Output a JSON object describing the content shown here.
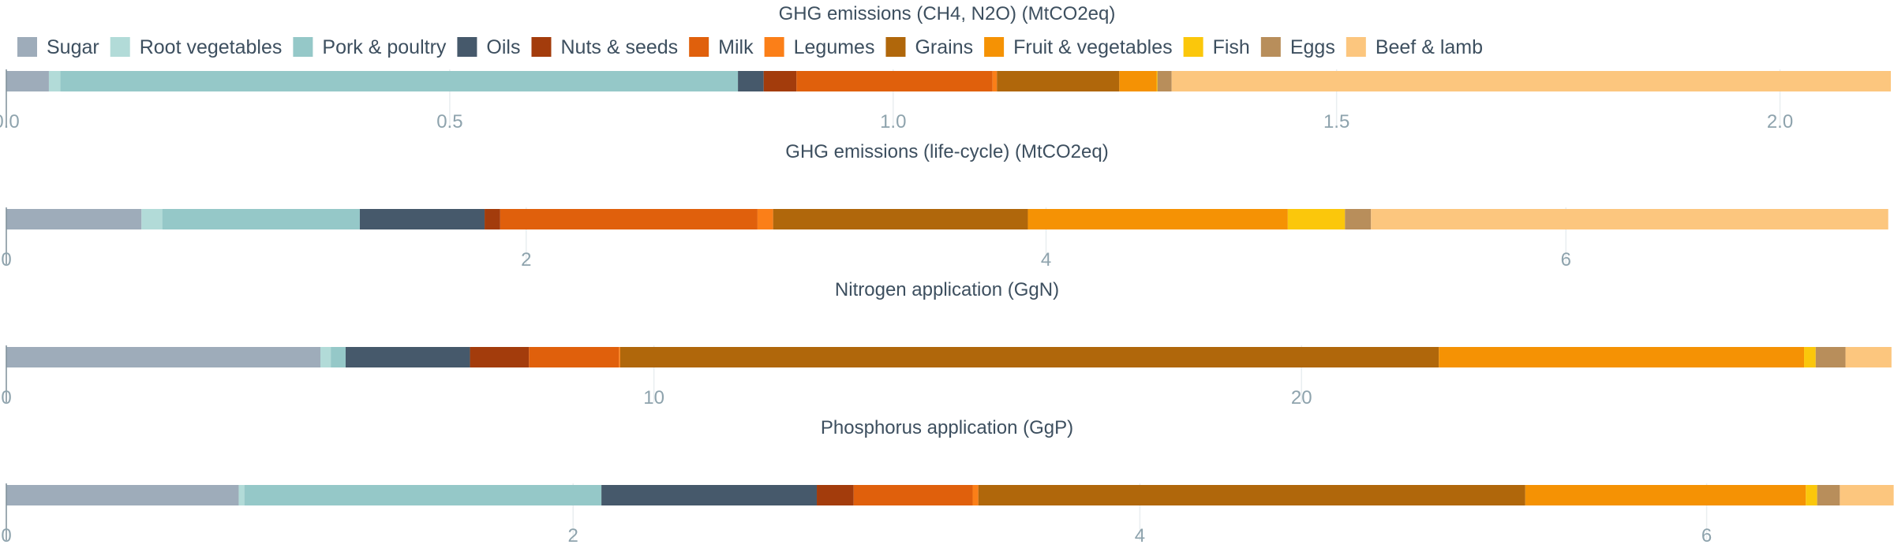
{
  "colors": {
    "Sugar": "#9eacba",
    "Root vegetables": "#b2dbd8",
    "Pork & poultry": "#95c8c8",
    "Oils": "#46596b",
    "Nuts & seeds": "#a33c0c",
    "Milk": "#e0600c",
    "Legumes": "#fb7f18",
    "Grains": "#b0670b",
    "Fruit & vegetables": "#f59204",
    "Fish": "#fbc70b",
    "Eggs": "#b88e5b",
    "Beef & lamb": "#fcc67e"
  },
  "legend": [
    "Sugar",
    "Root vegetables",
    "Pork & poultry",
    "Oils",
    "Nuts & seeds",
    "Milk",
    "Legumes",
    "Grains",
    "Fruit & vegetables",
    "Fish",
    "Eggs",
    "Beef & lamb"
  ],
  "chart_data": [
    {
      "type": "bar",
      "orientation": "horizontal-stacked",
      "title": "GHG emissions (CH4, N2O) (MtCO2eq)",
      "xlim": [
        0,
        2.125
      ],
      "ticks": [
        0,
        0.5,
        1.0,
        1.5,
        2.0
      ],
      "tick_labels": [
        "0.0",
        "0.5",
        "1.0",
        "1.5",
        "2.0"
      ],
      "series": [
        {
          "name": "Sugar",
          "value": 0.048
        },
        {
          "name": "Root vegetables",
          "value": 0.013
        },
        {
          "name": "Pork & poultry",
          "value": 0.764
        },
        {
          "name": "Oils",
          "value": 0.029
        },
        {
          "name": "Nuts & seeds",
          "value": 0.037
        },
        {
          "name": "Milk",
          "value": 0.221
        },
        {
          "name": "Legumes",
          "value": 0.005
        },
        {
          "name": "Grains",
          "value": 0.138
        },
        {
          "name": "Fruit & vegetables",
          "value": 0.042
        },
        {
          "name": "Fish",
          "value": 0.001
        },
        {
          "name": "Eggs",
          "value": 0.016
        },
        {
          "name": "Beef & lamb",
          "value": 0.811
        }
      ]
    },
    {
      "type": "bar",
      "orientation": "horizontal-stacked",
      "title": "GHG emissions (life-cycle) (MtCO2eq)",
      "xlim": [
        0,
        7.25
      ],
      "ticks": [
        0,
        2,
        4,
        6
      ],
      "tick_labels": [
        "0",
        "2",
        "4",
        "6"
      ],
      "series": [
        {
          "name": "Sugar",
          "value": 0.52
        },
        {
          "name": "Root vegetables",
          "value": 0.08
        },
        {
          "name": "Pork & poultry",
          "value": 0.76
        },
        {
          "name": "Oils",
          "value": 0.48
        },
        {
          "name": "Nuts & seeds",
          "value": 0.06
        },
        {
          "name": "Milk",
          "value": 0.99
        },
        {
          "name": "Legumes",
          "value": 0.06
        },
        {
          "name": "Grains",
          "value": 0.98
        },
        {
          "name": "Fruit & vegetables",
          "value": 1.0
        },
        {
          "name": "Fish",
          "value": 0.22
        },
        {
          "name": "Eggs",
          "value": 0.1
        },
        {
          "name": "Beef & lamb",
          "value": 1.99
        }
      ]
    },
    {
      "type": "bar",
      "orientation": "horizontal-stacked",
      "title": "Nitrogen application (GgN)",
      "xlim": [
        0,
        29.1
      ],
      "ticks": [
        0,
        10,
        20
      ],
      "tick_labels": [
        "0",
        "10",
        "20"
      ],
      "series": [
        {
          "name": "Sugar",
          "value": 4.85
        },
        {
          "name": "Root vegetables",
          "value": 0.16
        },
        {
          "name": "Pork & poultry",
          "value": 0.23
        },
        {
          "name": "Oils",
          "value": 1.92
        },
        {
          "name": "Nuts & seeds",
          "value": 0.91
        },
        {
          "name": "Milk",
          "value": 1.39
        },
        {
          "name": "Legumes",
          "value": 0.02
        },
        {
          "name": "Grains",
          "value": 12.64
        },
        {
          "name": "Fruit & vegetables",
          "value": 5.64
        },
        {
          "name": "Fish",
          "value": 0.18
        },
        {
          "name": "Eggs",
          "value": 0.46
        },
        {
          "name": "Beef & lamb",
          "value": 0.71
        }
      ]
    },
    {
      "type": "bar",
      "orientation": "horizontal-stacked",
      "title": "Phosphorus application (GgP)",
      "xlim": [
        0,
        6.65
      ],
      "ticks": [
        0,
        2,
        4,
        6
      ],
      "tick_labels": [
        "0",
        "2",
        "4",
        "6"
      ],
      "series": [
        {
          "name": "Sugar",
          "value": 0.82
        },
        {
          "name": "Root vegetables",
          "value": 0.02
        },
        {
          "name": "Pork & poultry",
          "value": 1.26
        },
        {
          "name": "Oils",
          "value": 0.76
        },
        {
          "name": "Nuts & seeds",
          "value": 0.13
        },
        {
          "name": "Milk",
          "value": 0.42
        },
        {
          "name": "Legumes",
          "value": 0.02
        },
        {
          "name": "Grains",
          "value": 1.93
        },
        {
          "name": "Fruit & vegetables",
          "value": 0.99
        },
        {
          "name": "Fish",
          "value": 0.04
        },
        {
          "name": "Eggs",
          "value": 0.08
        },
        {
          "name": "Beef & lamb",
          "value": 0.19
        }
      ]
    }
  ]
}
